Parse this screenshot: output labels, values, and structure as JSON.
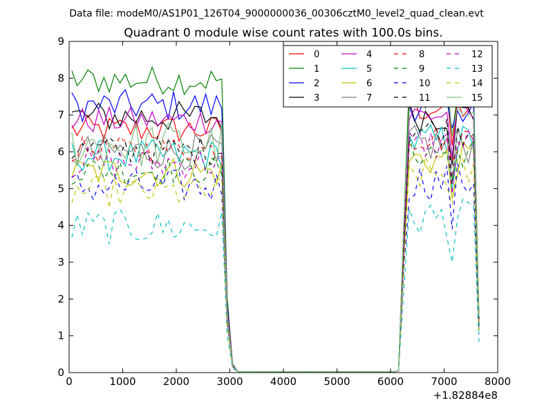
{
  "figure": {
    "suptitle": "Data file: modeM0/AS1P01_126T04_9000000036_00306cztM0_level2_quad_clean.evt",
    "title": "Quadrant 0 module wise count rates with 100.0s bins.",
    "x_offset_label": "+1.82884e8"
  },
  "chart_data": {
    "type": "line",
    "title": "Quadrant 0 module wise count rates with 100.0s bins.",
    "xlabel": "",
    "ylabel": "",
    "xlim": [
      0,
      8000
    ],
    "ylim": [
      0,
      9
    ],
    "x_offset": 182884000,
    "x_ticks": [
      0,
      1000,
      2000,
      3000,
      4000,
      5000,
      6000,
      7000,
      8000
    ],
    "x_tick_labels": [
      "0",
      "1000",
      "2000",
      "3000",
      "4000",
      "5000",
      "6000",
      "7000",
      "8000"
    ],
    "y_ticks": [
      0,
      1,
      2,
      3,
      4,
      5,
      6,
      7,
      8,
      9
    ],
    "y_tick_labels": [
      "0",
      "1",
      "2",
      "3",
      "4",
      "5",
      "6",
      "7",
      "8",
      "9"
    ],
    "grid": false,
    "legend_position": "top-right",
    "legend_columns": 4,
    "bin_seconds": 100,
    "segment1_x": [
      50,
      150,
      250,
      350,
      450,
      550,
      650,
      750,
      850,
      950,
      1050,
      1150,
      1250,
      1350,
      1450,
      1550,
      1650,
      1750,
      1850,
      1950,
      2050,
      2150,
      2250,
      2350,
      2450,
      2550,
      2650,
      2750,
      2850,
      2950,
      3050
    ],
    "segment2_x": [
      6150,
      6250,
      6350,
      6450,
      6550,
      6650,
      6750,
      6850,
      6950,
      7050,
      7150,
      7250,
      7350,
      7450,
      7550,
      7650
    ],
    "gap_x": [
      3150,
      6050
    ],
    "series": [
      {
        "name": "0",
        "color": "#ff0000",
        "dash": "solid",
        "level": 6.6,
        "amp": 0.18,
        "end": 7.2
      },
      {
        "name": "1",
        "color": "#008000",
        "dash": "solid",
        "level": 7.95,
        "amp": 0.18,
        "end": 7.6
      },
      {
        "name": "2",
        "color": "#0000ff",
        "dash": "solid",
        "level": 7.25,
        "amp": 0.2,
        "end": 7.3
      },
      {
        "name": "3",
        "color": "#000000",
        "dash": "solid",
        "level": 6.95,
        "amp": 0.2,
        "end": 7.0
      },
      {
        "name": "4",
        "color": "#bf00bf",
        "dash": "solid",
        "level": 6.85,
        "amp": 0.17,
        "end": 7.0
      },
      {
        "name": "5",
        "color": "#00bfbf",
        "dash": "solid",
        "level": 5.9,
        "amp": 0.2,
        "end": 6.3
      },
      {
        "name": "6",
        "color": "#bfbf00",
        "dash": "solid",
        "level": 5.45,
        "amp": 0.2,
        "end": 5.8
      },
      {
        "name": "7",
        "color": "#808080",
        "dash": "solid",
        "level": 6.0,
        "amp": 0.22,
        "end": 6.2
      },
      {
        "name": "8",
        "color": "#ff0000",
        "dash": "dashed",
        "level": 6.05,
        "amp": 0.17,
        "end": 6.4
      },
      {
        "name": "9",
        "color": "#008000",
        "dash": "dashed",
        "level": 5.5,
        "amp": 0.18,
        "end": 6.0
      },
      {
        "name": "10",
        "color": "#0000ff",
        "dash": "dashed",
        "level": 5.05,
        "amp": 0.22,
        "end": 5.2
      },
      {
        "name": "11",
        "color": "#000000",
        "dash": "dashed",
        "level": 6.05,
        "amp": 0.18,
        "end": 6.6
      },
      {
        "name": "12",
        "color": "#bf00bf",
        "dash": "dashed",
        "level": 5.7,
        "amp": 0.2,
        "end": 6.2
      },
      {
        "name": "13",
        "color": "#00bfbf",
        "dash": "dashed",
        "level": 3.95,
        "amp": 0.22,
        "end": 4.2
      },
      {
        "name": "14",
        "color": "#bfbf00",
        "dash": "dashed",
        "level": 4.9,
        "amp": 0.2,
        "end": 5.4
      },
      {
        "name": "15",
        "color": "#7fbf7f",
        "dash": "solid",
        "level": 6.2,
        "amp": 0.3,
        "end": 7.6
      }
    ]
  }
}
